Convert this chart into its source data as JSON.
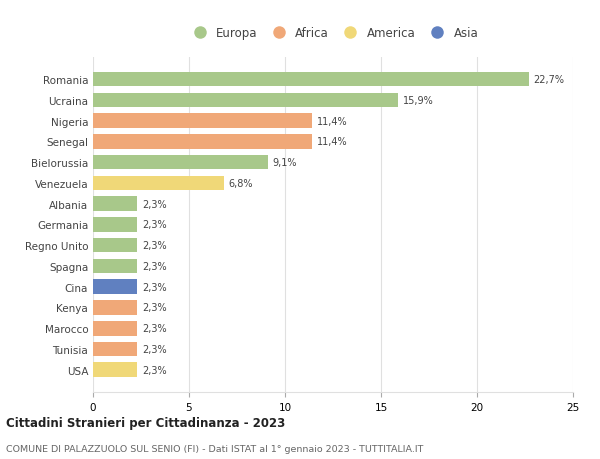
{
  "countries": [
    "Romania",
    "Ucraina",
    "Nigeria",
    "Senegal",
    "Bielorussia",
    "Venezuela",
    "Albania",
    "Germania",
    "Regno Unito",
    "Spagna",
    "Cina",
    "Kenya",
    "Marocco",
    "Tunisia",
    "USA"
  ],
  "values": [
    22.7,
    15.9,
    11.4,
    11.4,
    9.1,
    6.8,
    2.3,
    2.3,
    2.3,
    2.3,
    2.3,
    2.3,
    2.3,
    2.3,
    2.3
  ],
  "labels": [
    "22,7%",
    "15,9%",
    "11,4%",
    "11,4%",
    "9,1%",
    "6,8%",
    "2,3%",
    "2,3%",
    "2,3%",
    "2,3%",
    "2,3%",
    "2,3%",
    "2,3%",
    "2,3%",
    "2,3%"
  ],
  "colors": [
    "#a8c88a",
    "#a8c88a",
    "#f0a878",
    "#f0a878",
    "#a8c88a",
    "#f0d878",
    "#a8c88a",
    "#a8c88a",
    "#a8c88a",
    "#a8c88a",
    "#6080c0",
    "#f0a878",
    "#f0a878",
    "#f0a878",
    "#f0d878"
  ],
  "continent_colors": {
    "Europa": "#a8c88a",
    "Africa": "#f0a878",
    "America": "#f0d878",
    "Asia": "#6080c0"
  },
  "legend_labels": [
    "Europa",
    "Africa",
    "America",
    "Asia"
  ],
  "title": "Cittadini Stranieri per Cittadinanza - 2023",
  "subtitle": "COMUNE DI PALAZZUOLO SUL SENIO (FI) - Dati ISTAT al 1° gennaio 2023 - TUTTITALIA.IT",
  "xlim": [
    0,
    25
  ],
  "xticks": [
    0,
    5,
    10,
    15,
    20,
    25
  ],
  "background_color": "#ffffff",
  "grid_color": "#e0e0e0"
}
